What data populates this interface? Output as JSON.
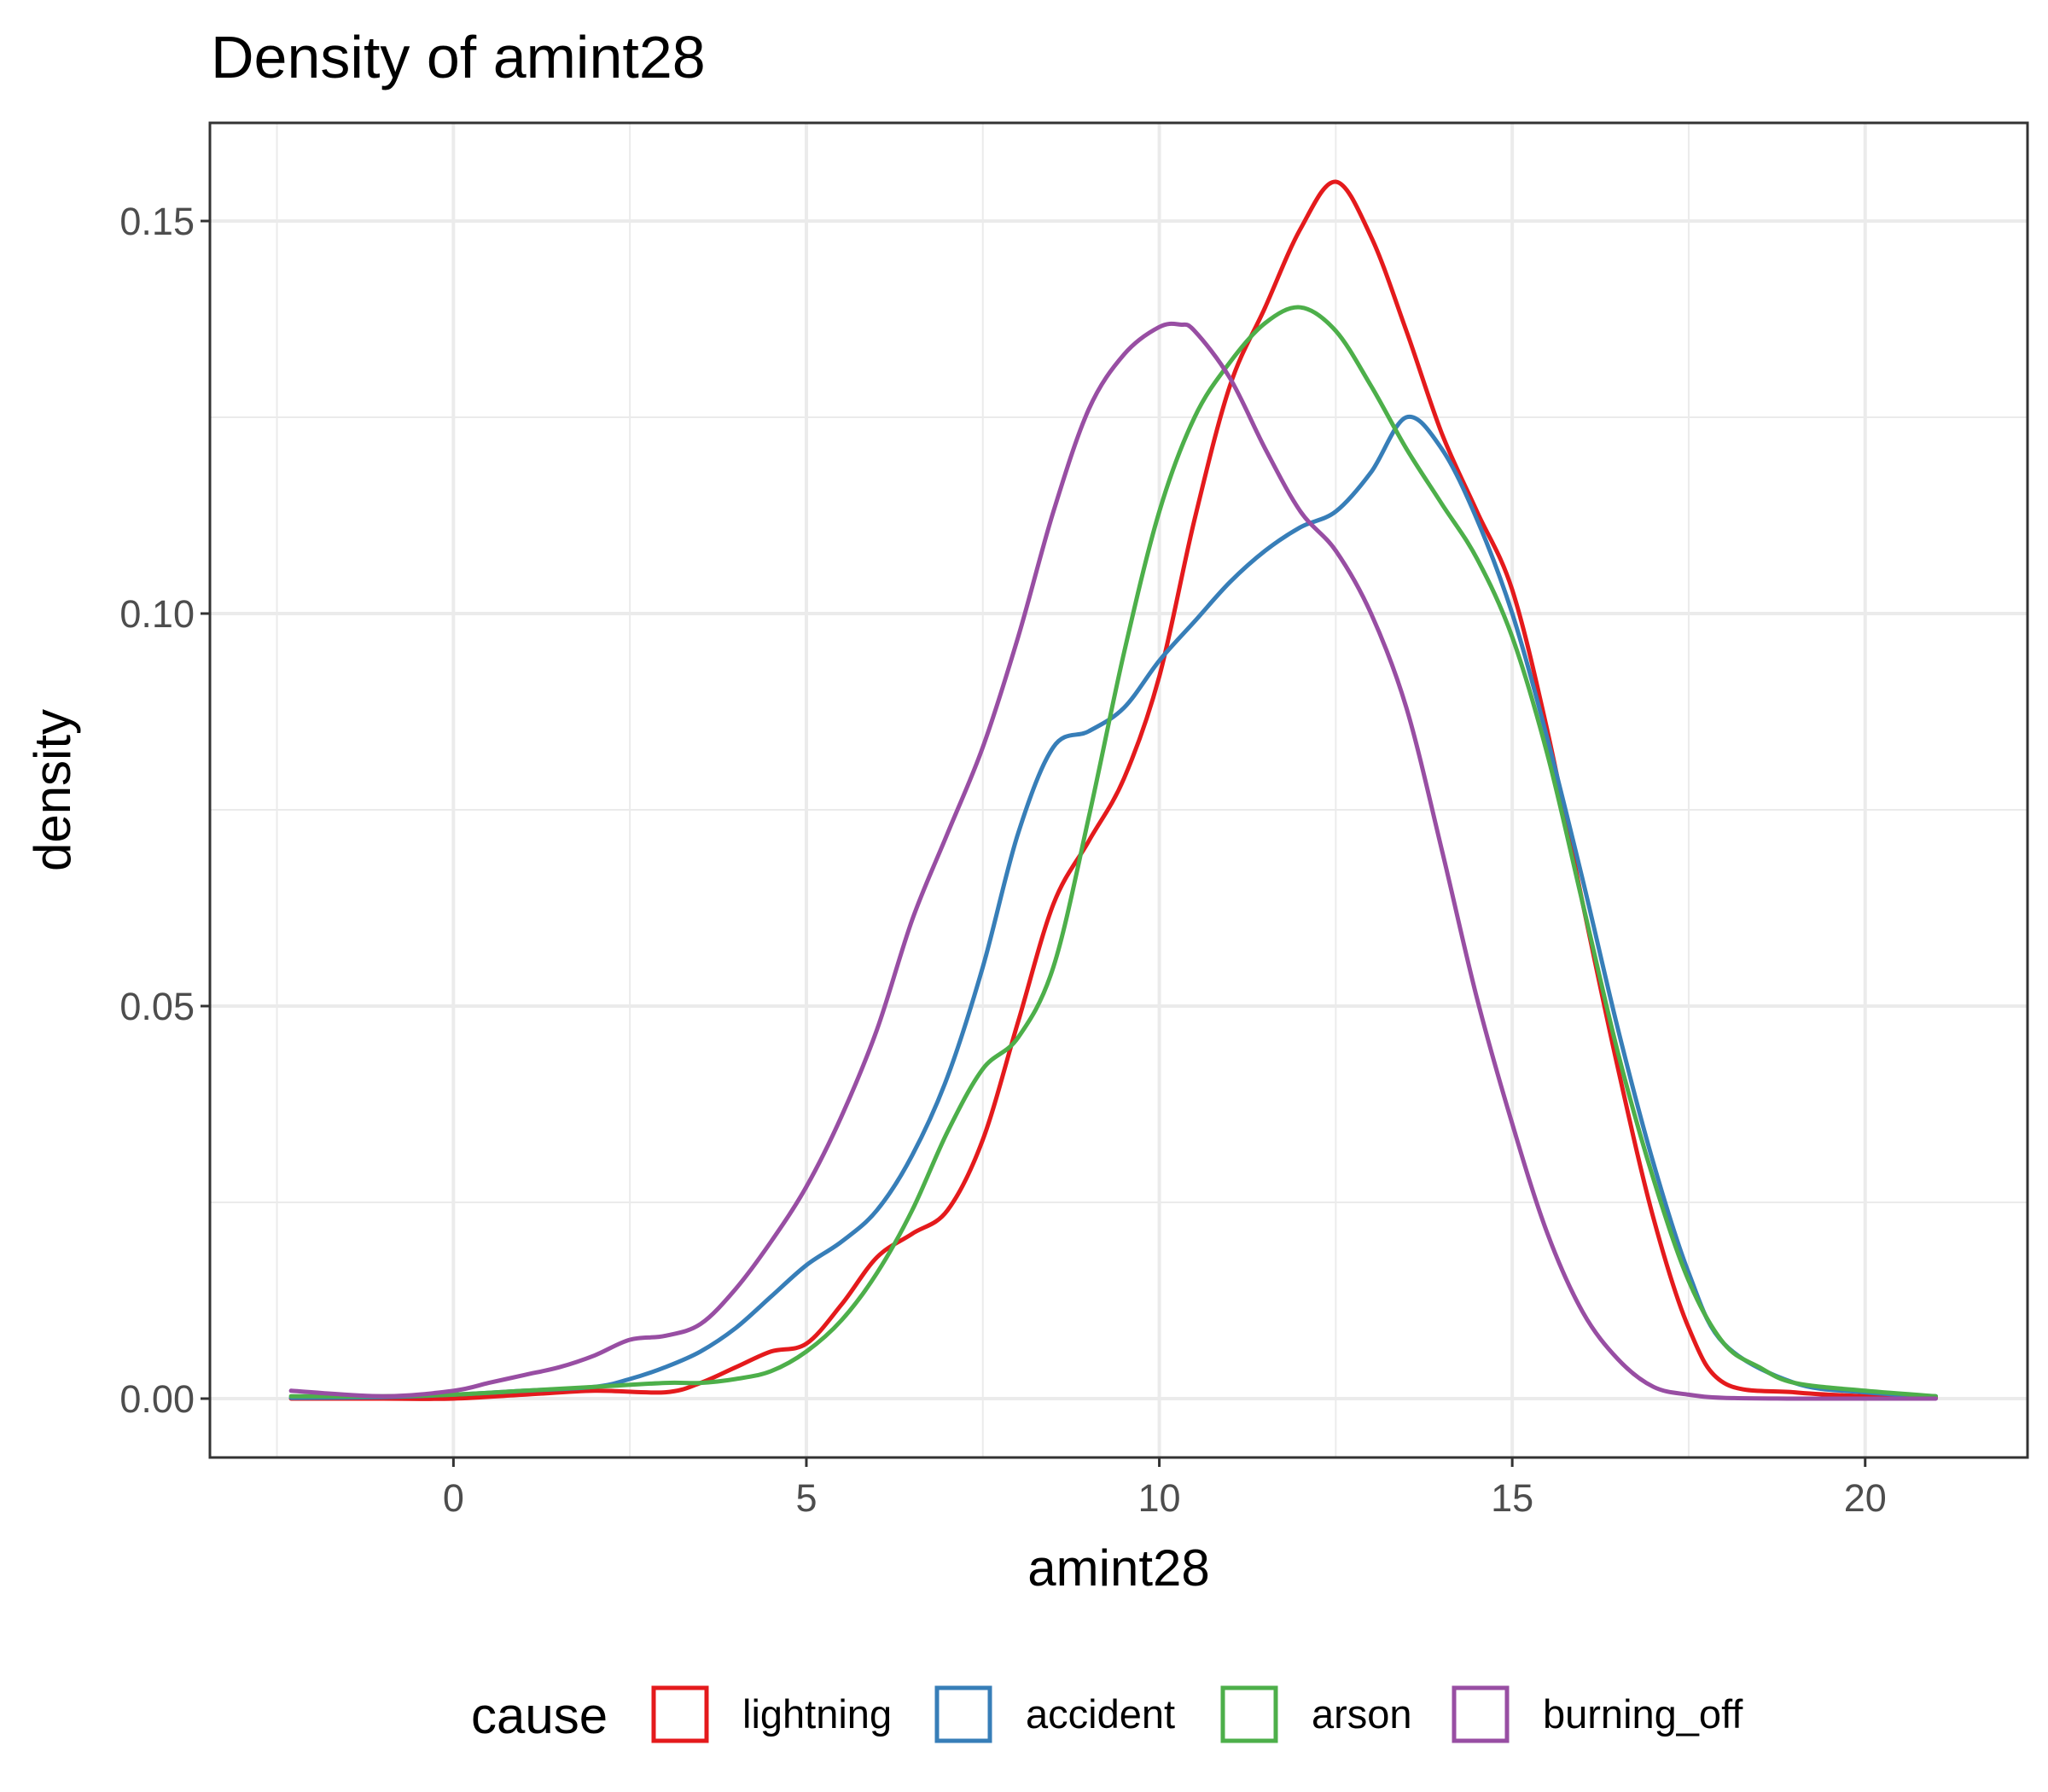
{
  "chart_data": {
    "type": "line",
    "title": "Density of amint28",
    "xlabel": "amint28",
    "ylabel": "density",
    "xlim": [
      -3.45,
      22.3
    ],
    "ylim": [
      -0.0075,
      0.1625
    ],
    "x_ticks": [
      0,
      5,
      10,
      15,
      20
    ],
    "x_tick_labels": [
      "0",
      "5",
      "10",
      "15",
      "20"
    ],
    "y_ticks": [
      0.0,
      0.05,
      0.1,
      0.15
    ],
    "y_tick_labels": [
      "0.00",
      "0.05",
      "0.10",
      "0.15"
    ],
    "grid": true,
    "legend": {
      "title": "cause",
      "position": "bottom"
    },
    "series": [
      {
        "name": "lightning",
        "color": "#e41a1c",
        "x": [
          -2.3,
          -1,
          0,
          1,
          2,
          3,
          3.5,
          4,
          4.5,
          5,
          5.5,
          6,
          6.5,
          7,
          7.5,
          8,
          8.5,
          9,
          9.5,
          10,
          10.5,
          11,
          11.5,
          12,
          12.5,
          13,
          13.5,
          14,
          14.5,
          15,
          15.5,
          16,
          16.5,
          17,
          17.5,
          18,
          19,
          20,
          21
        ],
        "y": [
          0.0,
          0.0,
          0.0,
          0.0005,
          0.001,
          0.0008,
          0.002,
          0.004,
          0.006,
          0.007,
          0.012,
          0.018,
          0.021,
          0.024,
          0.033,
          0.048,
          0.063,
          0.071,
          0.079,
          0.092,
          0.112,
          0.129,
          0.139,
          0.149,
          0.155,
          0.148,
          0.136,
          0.123,
          0.113,
          0.103,
          0.085,
          0.063,
          0.042,
          0.023,
          0.009,
          0.002,
          0.0008,
          0.0003,
          0.0001
        ]
      },
      {
        "name": "accident",
        "color": "#377eb8",
        "x": [
          -2.3,
          -1,
          0,
          1,
          2,
          2.5,
          3,
          3.5,
          4,
          4.5,
          5,
          5.5,
          6,
          6.5,
          7,
          7.5,
          8,
          8.5,
          9,
          9.5,
          10,
          10.5,
          11,
          11.5,
          12,
          12.5,
          13,
          13.5,
          14,
          14.5,
          15,
          15.5,
          16,
          16.5,
          17,
          17.5,
          18,
          19,
          20,
          21
        ],
        "y": [
          0.0001,
          0.0002,
          0.0005,
          0.001,
          0.0015,
          0.0025,
          0.004,
          0.006,
          0.009,
          0.013,
          0.017,
          0.02,
          0.024,
          0.031,
          0.041,
          0.055,
          0.072,
          0.083,
          0.085,
          0.088,
          0.094,
          0.099,
          0.104,
          0.108,
          0.111,
          0.113,
          0.118,
          0.125,
          0.121,
          0.112,
          0.1,
          0.084,
          0.066,
          0.047,
          0.03,
          0.016,
          0.007,
          0.002,
          0.0008,
          0.0003
        ]
      },
      {
        "name": "arson",
        "color": "#4daf4a",
        "x": [
          -2.3,
          -1,
          0,
          1,
          2,
          3,
          3.5,
          4,
          4.5,
          5,
          5.5,
          6,
          6.5,
          7,
          7.5,
          8,
          8.5,
          9,
          9.5,
          10,
          10.5,
          11,
          11.5,
          12,
          12.5,
          13,
          13.5,
          14,
          14.5,
          15,
          15.5,
          16,
          16.5,
          17,
          17.5,
          18,
          18.5,
          19,
          20,
          21
        ],
        "y": [
          0.0003,
          0.0003,
          0.0005,
          0.001,
          0.0015,
          0.002,
          0.002,
          0.0025,
          0.0035,
          0.006,
          0.01,
          0.016,
          0.024,
          0.034,
          0.042,
          0.046,
          0.055,
          0.074,
          0.095,
          0.113,
          0.125,
          0.132,
          0.137,
          0.139,
          0.136,
          0.129,
          0.121,
          0.114,
          0.107,
          0.097,
          0.082,
          0.063,
          0.044,
          0.028,
          0.015,
          0.007,
          0.004,
          0.002,
          0.001,
          0.0003
        ]
      },
      {
        "name": "burning_off",
        "color": "#984ea3",
        "x": [
          -2.3,
          -1,
          0,
          0.5,
          1,
          1.5,
          2,
          2.5,
          3,
          3.5,
          4,
          4.5,
          5,
          5.5,
          6,
          6.5,
          7,
          7.5,
          8,
          8.5,
          9,
          9.5,
          10,
          10.3,
          10.5,
          11,
          11.5,
          12,
          12.5,
          13,
          13.5,
          14,
          14.5,
          15,
          15.5,
          16,
          16.5,
          17,
          17.5,
          18,
          19,
          20,
          21
        ],
        "y": [
          0.001,
          0.0003,
          0.001,
          0.002,
          0.003,
          0.004,
          0.0055,
          0.0075,
          0.008,
          0.0095,
          0.014,
          0.02,
          0.027,
          0.036,
          0.047,
          0.061,
          0.072,
          0.083,
          0.097,
          0.113,
          0.126,
          0.133,
          0.1365,
          0.1368,
          0.136,
          0.13,
          0.121,
          0.113,
          0.108,
          0.1,
          0.088,
          0.07,
          0.051,
          0.035,
          0.021,
          0.011,
          0.005,
          0.0015,
          0.0005,
          0.0001,
          0.0,
          0.0,
          0.0
        ]
      }
    ]
  }
}
